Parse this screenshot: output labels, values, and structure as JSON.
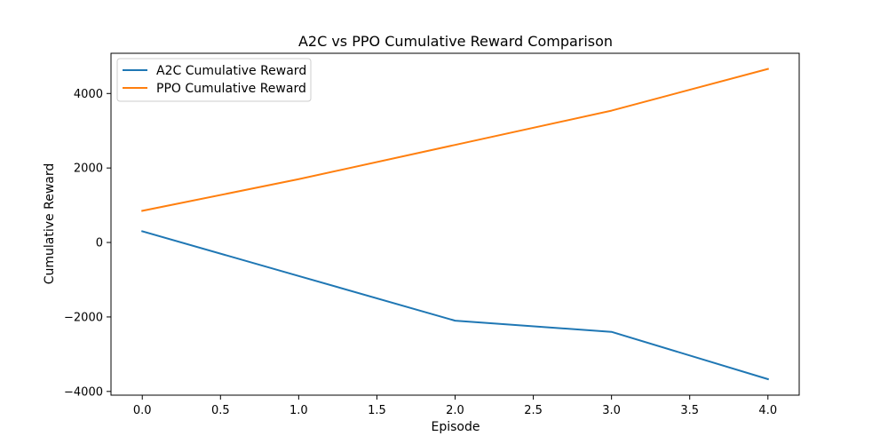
{
  "chart_data": {
    "type": "line",
    "title": "A2C vs PPO Cumulative Reward Comparison",
    "xlabel": "Episode",
    "ylabel": "Cumulative Reward",
    "x": [
      0,
      1,
      2,
      3,
      4
    ],
    "xlim": [
      -0.2,
      4.2
    ],
    "ylim": [
      -4100,
      5080
    ],
    "xticks": [
      0.0,
      0.5,
      1.0,
      1.5,
      2.0,
      2.5,
      3.0,
      3.5,
      4.0
    ],
    "xtick_labels": [
      "0.0",
      "0.5",
      "1.0",
      "1.5",
      "2.0",
      "2.5",
      "3.0",
      "3.5",
      "4.0"
    ],
    "yticks": [
      -4000,
      -2000,
      0,
      2000,
      4000
    ],
    "ytick_labels": [
      "−4000",
      "−2000",
      "0",
      "2000",
      "4000"
    ],
    "grid": false,
    "legend_position": "top-left",
    "series": [
      {
        "name": "A2C Cumulative Reward",
        "color": "#1f77b4",
        "values": [
          300,
          -900,
          -2100,
          -2400,
          -3670
        ]
      },
      {
        "name": "PPO Cumulative Reward",
        "color": "#ff7f0e",
        "values": [
          850,
          1700,
          2620,
          3540,
          4660
        ]
      }
    ]
  }
}
